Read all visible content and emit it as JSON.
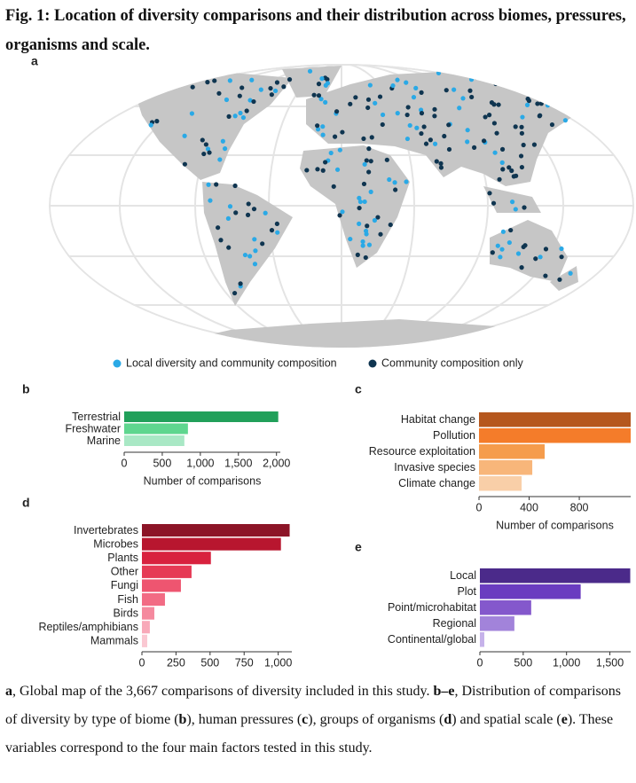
{
  "figure": {
    "title": "Fig. 1: Location of diversity comparisons and their distribution across biomes, pressures, organisms and scale."
  },
  "map": {
    "panel": "a",
    "legend": [
      {
        "name": "Local diversity and community composition",
        "color": "#2aa9e6"
      },
      {
        "name": "Community composition only",
        "color": "#0f3550"
      }
    ]
  },
  "chart_data": [
    {
      "type": "barh",
      "panel": "b",
      "xlabel": "Number of comparisons",
      "categories": [
        "Terrestrial",
        "Freshwater",
        "Marine"
      ],
      "values": [
        2023,
        837,
        790
      ],
      "colors": [
        "#21a05a",
        "#5fd68f",
        "#a9e8c5"
      ],
      "xlim": [
        0,
        2050
      ],
      "xticks": [
        0,
        500,
        {
          "value": 1000,
          "label": "1,000"
        },
        {
          "value": 1500,
          "label": "1,500"
        },
        {
          "value": 2000,
          "label": "2,000"
        }
      ]
    },
    {
      "type": "barh",
      "panel": "c",
      "xlabel": "Number of comparisons",
      "categories": [
        "Habitat change",
        "Pollution",
        "Resource exploitation",
        "Invasive species",
        "Climate change"
      ],
      "values": [
        1210,
        1210,
        524,
        425,
        340
      ],
      "colors": [
        "#b5571e",
        "#f47c2a",
        "#f59c4c",
        "#f8b67a",
        "#f9cfa8"
      ],
      "xlim": [
        0,
        1210
      ],
      "xticks": [
        0,
        400,
        800
      ]
    },
    {
      "type": "barh",
      "panel": "d",
      "xlabel": "Number of comparisons",
      "categories": [
        "Invertebrates",
        "Microbes",
        "Plants",
        "Other",
        "Fungi",
        "Fish",
        "Birds",
        "Reptiles/amphibians",
        "Mammals"
      ],
      "values": [
        1084,
        1020,
        506,
        364,
        286,
        169,
        91,
        58,
        39
      ],
      "colors": [
        "#8c1427",
        "#b8162f",
        "#d8213e",
        "#e63a55",
        "#ee5570",
        "#f26b84",
        "#f5899e",
        "#f8a9b9",
        "#fac8d2"
      ],
      "xlim": [
        0,
        1100
      ],
      "xticks": [
        0,
        250,
        500,
        750,
        {
          "value": 1000,
          "label": "1,000"
        }
      ]
    },
    {
      "type": "barh",
      "panel": "e",
      "xlabel": "Number of comparisons",
      "categories": [
        "Local",
        "Plot",
        "Point/microhabitat",
        "Regional",
        "Continental/global"
      ],
      "values": [
        1735,
        1163,
        592,
        398,
        51
      ],
      "colors": [
        "#4b2a8a",
        "#6a3cc0",
        "#8458cc",
        "#a283da",
        "#c6b2ea"
      ],
      "xlim": [
        0,
        1740
      ],
      "xticks": [
        0,
        500,
        {
          "value": 1000,
          "label": "1,000"
        },
        {
          "value": 1500,
          "label": "1,500"
        }
      ]
    }
  ],
  "caption": [
    {
      "text": "a",
      "bold": true
    },
    {
      "text": ", Global map of the 3,667 comparisons of diversity included in this study. "
    },
    {
      "text": "b–e",
      "bold": true
    },
    {
      "text": ", Distribution of comparisons of diversity by type of biome ("
    },
    {
      "text": "b",
      "bold": true
    },
    {
      "text": "), human pressures ("
    },
    {
      "text": "c",
      "bold": true
    },
    {
      "text": "), groups of organisms ("
    },
    {
      "text": "d",
      "bold": true
    },
    {
      "text": ") and spatial scale ("
    },
    {
      "text": "e",
      "bold": true
    },
    {
      "text": "). These variables correspond to the four main factors tested in this study."
    }
  ]
}
